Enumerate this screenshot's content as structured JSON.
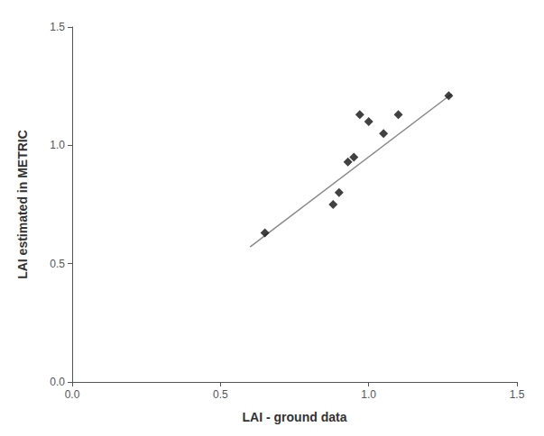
{
  "chart_data": {
    "type": "scatter",
    "xlabel": "LAI - ground data",
    "ylabel": "LAI estimated in METRIC",
    "series": [
      {
        "type": "line",
        "color": "#888888",
        "line_style": "solid",
        "x": [
          0.6,
          1.28
        ],
        "values": [
          0.5706,
          1.21728
        ]
      },
      {
        "type": "scatter",
        "marker": "diamond",
        "color": "#111111",
        "x": [
          0.65,
          0.88,
          0.9,
          0.93,
          0.95,
          0.97,
          1.0,
          1.05,
          1.1,
          1.27
        ],
        "values": [
          0.63,
          0.75,
          0.8,
          0.93,
          0.95,
          1.13,
          1.1,
          1.05,
          1.13,
          1.21
        ]
      }
    ],
    "xlim": [
      0.0,
      1.5
    ],
    "ylim": [
      0.0,
      1.5
    ],
    "xticks": [
      {
        "value": 0,
        "label": "0.0"
      },
      0.5,
      {
        "value": 1,
        "label": "1.0"
      },
      1.5
    ],
    "yticks": [
      {
        "value": 0,
        "label": "0.0"
      },
      0.5,
      {
        "value": 1,
        "label": "1.0"
      },
      1.5
    ],
    "grid": false
  }
}
